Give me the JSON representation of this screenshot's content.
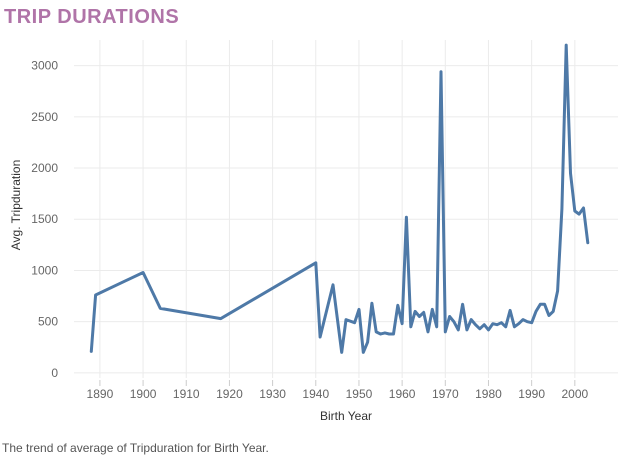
{
  "title": "TRIP DURATIONS",
  "caption": "The trend of average of Tripduration for Birth Year.",
  "colors": {
    "title": "#b074a8",
    "line": "#4e79a7",
    "grid": "#ebebeb"
  },
  "chart_data": {
    "type": "line",
    "title": "TRIP DURATIONS",
    "xlabel": "Birth Year",
    "ylabel": "Avg. Tripduration",
    "xlim": [
      1884,
      2010
    ],
    "ylim": [
      -50,
      3250
    ],
    "xticks": [
      1890,
      1900,
      1910,
      1920,
      1930,
      1940,
      1950,
      1960,
      1970,
      1980,
      1990,
      2000
    ],
    "yticks": [
      0,
      500,
      1000,
      1500,
      2000,
      2500,
      3000
    ],
    "grid": true,
    "series": [
      {
        "x": [
          1888,
          1889,
          1900,
          1904,
          1918,
          1940,
          1941,
          1944,
          1946,
          1947,
          1949,
          1950,
          1951,
          1952,
          1953,
          1954,
          1955,
          1956,
          1957,
          1958,
          1959,
          1960,
          1961,
          1962,
          1963,
          1964,
          1965,
          1966,
          1967,
          1968,
          1969,
          1970,
          1971,
          1972,
          1973,
          1974,
          1975,
          1976,
          1977,
          1978,
          1979,
          1980,
          1981,
          1982,
          1983,
          1984,
          1985,
          1986,
          1987,
          1988,
          1989,
          1990,
          1991,
          1992,
          1993,
          1994,
          1995,
          1996,
          1997,
          1998,
          1999,
          2000,
          2001,
          2002,
          2003
        ],
        "values": [
          210,
          760,
          980,
          630,
          530,
          1075,
          350,
          860,
          200,
          520,
          490,
          620,
          200,
          300,
          680,
          400,
          380,
          390,
          380,
          380,
          660,
          480,
          1520,
          450,
          600,
          550,
          590,
          400,
          620,
          450,
          2940,
          400,
          550,
          500,
          420,
          670,
          420,
          520,
          470,
          430,
          470,
          420,
          480,
          470,
          490,
          450,
          610,
          450,
          480,
          520,
          500,
          490,
          600,
          670,
          670,
          560,
          600,
          800,
          1600,
          3200,
          1950,
          1580,
          1550,
          1610,
          1270
        ]
      }
    ]
  }
}
